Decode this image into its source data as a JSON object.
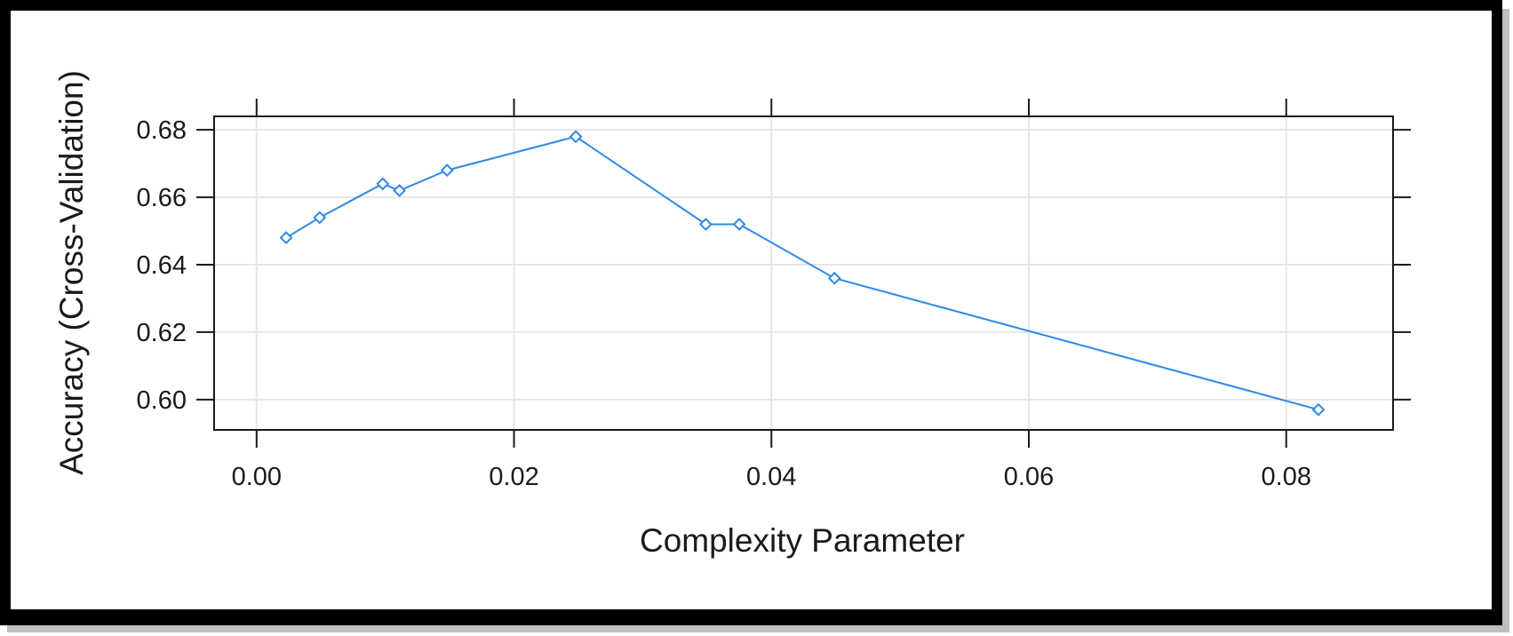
{
  "chart_data": {
    "type": "line",
    "xlabel": "Complexity Parameter",
    "ylabel": "Accuracy (Cross-Validation)",
    "xlim": [
      -0.0033,
      0.0883
    ],
    "ylim": [
      0.591,
      0.684
    ],
    "x_ticks": [
      0.0,
      0.02,
      0.04,
      0.06,
      0.08
    ],
    "x_tick_labels": [
      "0.00",
      "0.02",
      "0.04",
      "0.06",
      "0.08"
    ],
    "y_ticks": [
      0.6,
      0.62,
      0.64,
      0.66,
      0.68
    ],
    "y_tick_labels": [
      "0.60",
      "0.62",
      "0.64",
      "0.66",
      "0.68"
    ],
    "grid": true,
    "series": [
      {
        "color": "#2e8ae6",
        "marker": "diamond",
        "x": [
          0.0023,
          0.0049,
          0.0098,
          0.0111,
          0.0148,
          0.0248,
          0.0349,
          0.0375,
          0.0449,
          0.0825
        ],
        "y": [
          0.648,
          0.654,
          0.664,
          0.662,
          0.668,
          0.678,
          0.652,
          0.652,
          0.636,
          0.597
        ]
      }
    ]
  }
}
